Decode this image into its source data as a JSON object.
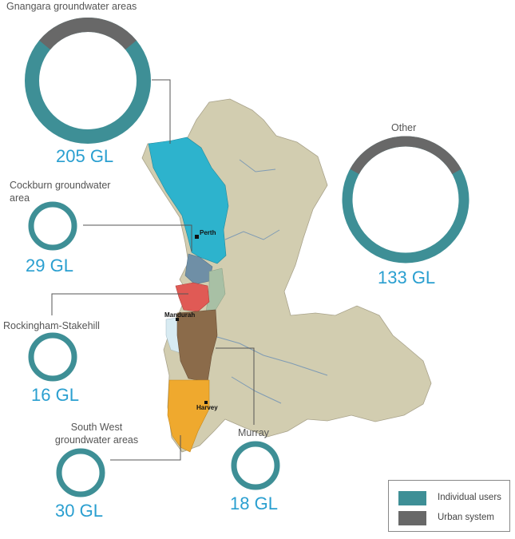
{
  "colors": {
    "individual_users": "#3e8f96",
    "urban_system": "#686868",
    "value_text": "#2a9fd0",
    "land": "#d2cdb0"
  },
  "areas": [
    {
      "id": "gnangara",
      "label": "Gnangara groundwater areas",
      "value": "205 GL",
      "urban_fraction": 0.28
    },
    {
      "id": "cockburn",
      "label": "Cockburn groundwater area",
      "value": "29 GL",
      "urban_fraction": 0.0
    },
    {
      "id": "rockingham",
      "label": "Rockingham-Stakehill",
      "value": "16 GL",
      "urban_fraction": 0.0
    },
    {
      "id": "southwest",
      "label": "South West groundwater areas",
      "value": "30 GL",
      "urban_fraction": 0.0
    },
    {
      "id": "murray",
      "label": "Murray",
      "value": "18 GL",
      "urban_fraction": 0.0
    },
    {
      "id": "other",
      "label": "Other",
      "value": "133 GL",
      "urban_fraction": 0.34
    }
  ],
  "towns": [
    "Perth",
    "Mandurah",
    "Harvey"
  ],
  "legend": {
    "items": [
      {
        "label": "Individual users",
        "color": "#3e8f96"
      },
      {
        "label": "Urban system",
        "color": "#686868"
      }
    ]
  }
}
